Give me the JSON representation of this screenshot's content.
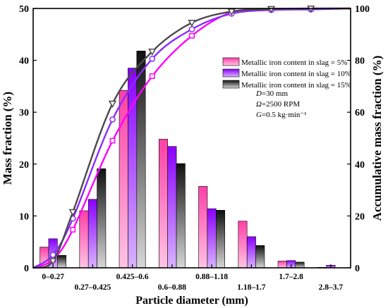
{
  "chart_data": {
    "type": "bar",
    "categories": [
      "0–0.27",
      "0.27–0.425",
      "0.425–0.6",
      "0.6–0.88",
      "0.88–1.18",
      "1.18–1.7",
      "1.7–2.8",
      "2.8–3.7"
    ],
    "series": [
      {
        "name": "Metallic iron content in slag = 5%",
        "values": [
          4.0,
          11.0,
          34.2,
          24.8,
          15.7,
          9.0,
          1.3,
          0.1
        ]
      },
      {
        "name": "Metallic iron content in slag = 10%",
        "values": [
          5.6,
          13.2,
          38.5,
          23.4,
          11.4,
          6.0,
          1.4,
          0.5
        ]
      },
      {
        "name": "Metallic iron content in slag = 15%",
        "values": [
          2.4,
          19.1,
          41.8,
          20.1,
          11.1,
          4.3,
          1.1,
          0.0
        ]
      }
    ],
    "cumulative_series": [
      {
        "name": "Metallic iron content in slag = 5%",
        "x": [
          0,
          0.5,
          1,
          2,
          3,
          4,
          5,
          6,
          7,
          8
        ],
        "values": [
          0,
          3.2,
          14.7,
          49.0,
          73.9,
          89.5,
          98.5,
          99.7,
          99.9,
          100
        ]
      },
      {
        "name": "Metallic iron content in slag = 10%",
        "x": [
          0,
          0.5,
          1,
          2,
          3,
          4,
          5,
          6,
          7,
          8
        ],
        "values": [
          0,
          5.0,
          19.0,
          57.2,
          80.6,
          92.0,
          98.0,
          99.4,
          99.6,
          100
        ]
      },
      {
        "name": "Metallic iron content in slag = 15%",
        "x": [
          0,
          0.5,
          1,
          2,
          3,
          4,
          5,
          6,
          7,
          8
        ],
        "values": [
          0,
          2.6,
          21.5,
          63.3,
          83.4,
          94.5,
          98.8,
          99.8,
          100,
          100
        ]
      }
    ],
    "xlabel": "Particle diameter (mm)",
    "ylabel": "Mass fraction (%)",
    "y2label": "Accumulative mass fraction (%)",
    "ylim": [
      0,
      50
    ],
    "y2lim": [
      0,
      100
    ],
    "yticks": [
      0,
      10,
      20,
      30,
      40,
      50
    ],
    "y2ticks": [
      0,
      20,
      40,
      60,
      80,
      100
    ],
    "legend_position": "right",
    "annotations": [
      "D=30 mm",
      "Ω=2500 RPM",
      "G=0.5 kg·min⁻¹"
    ],
    "colors": {
      "series": [
        "#ff3fa8",
        "#8a00ff",
        "#101010"
      ],
      "lines": [
        "#ff00ff",
        "#8c2bff",
        "#4a4a4a"
      ]
    }
  }
}
